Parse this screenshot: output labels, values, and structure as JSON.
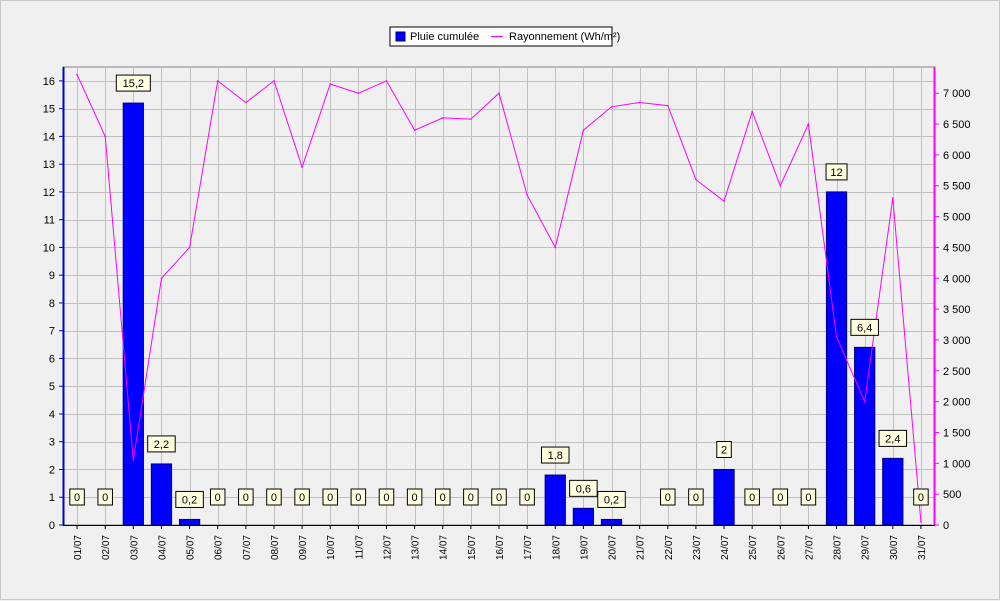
{
  "chart_data": {
    "type": "bar",
    "categories": [
      "01/07",
      "02/07",
      "03/07",
      "04/07",
      "05/07",
      "06/07",
      "07/07",
      "08/07",
      "09/07",
      "10/07",
      "11/07",
      "12/07",
      "13/07",
      "14/07",
      "15/07",
      "16/07",
      "17/07",
      "18/07",
      "19/07",
      "20/07",
      "21/07",
      "22/07",
      "23/07",
      "24/07",
      "25/07",
      "26/07",
      "27/07",
      "28/07",
      "29/07",
      "30/07",
      "31/07"
    ],
    "series": [
      {
        "name": "Pluie cumulée",
        "kind": "bar",
        "axis": "left",
        "color": "#0000ff",
        "values": [
          0,
          0,
          15.2,
          2.2,
          0.2,
          0,
          0,
          0,
          0,
          0,
          0,
          0,
          0,
          0,
          0,
          0,
          0,
          1.8,
          0.6,
          0.2,
          null,
          0,
          0,
          2,
          0,
          0,
          0,
          12,
          6.4,
          2.4,
          0
        ],
        "labels": [
          "0",
          "0",
          "15,2",
          "2,2",
          "0,2",
          "0",
          "0",
          "0",
          "0",
          "0",
          "0",
          "0",
          "0",
          "0",
          "0",
          "0",
          "0",
          "1,8",
          "0,6",
          "0,2",
          "",
          "0",
          "0",
          "2",
          "0",
          "0",
          "0",
          "12",
          "6,4",
          "2,4",
          "0"
        ]
      },
      {
        "name": "Rayonnement (Wh/m²)",
        "kind": "line",
        "axis": "right",
        "color": "#ff00ff",
        "values": [
          7300,
          6300,
          1050,
          4000,
          4500,
          7200,
          6850,
          7200,
          5800,
          7150,
          7000,
          7200,
          6400,
          6600,
          6580,
          7000,
          5350,
          4500,
          6400,
          6780,
          6850,
          6800,
          5600,
          5250,
          6700,
          5500,
          6500,
          3050,
          2000,
          5300,
          50
        ]
      }
    ],
    "yleft": {
      "min": 0,
      "max": 16.5,
      "ticks": [
        0,
        1,
        2,
        3,
        4,
        5,
        6,
        7,
        8,
        9,
        10,
        11,
        12,
        13,
        14,
        15,
        16
      ]
    },
    "yright": {
      "min": 0,
      "max": 7425,
      "ticks": [
        0,
        500,
        1000,
        1500,
        2000,
        2500,
        3000,
        3500,
        4000,
        4500,
        5000,
        5500,
        6000,
        6500,
        7000
      ]
    },
    "grid": true,
    "legend": "top-center",
    "colors": {
      "bar": "#0000ff",
      "line": "#ff00ff",
      "left_axis": "#0000cc",
      "right_axis": "#ff00ff",
      "grid": "#c0c0c0",
      "plot_bg": "#f0f0f0",
      "label_bg": "#ffffe0"
    }
  }
}
